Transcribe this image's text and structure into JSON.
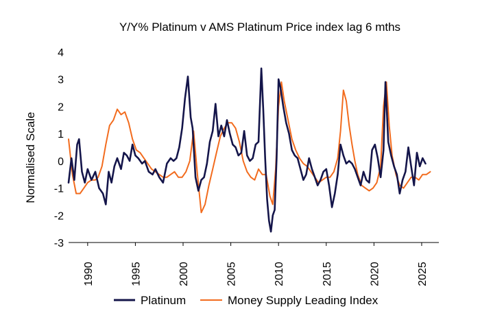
{
  "chart_data": {
    "type": "line",
    "title": "Y/Y% Platinum v AMS Platinum Price index lag 6 mths",
    "xlabel": "",
    "ylabel": "Normalised Scale",
    "xlim": [
      1988.0,
      2026.8
    ],
    "ylim": [
      -3,
      4
    ],
    "x_ticks": [
      1990,
      1995,
      2000,
      2005,
      2010,
      2015,
      2020,
      2025
    ],
    "y_ticks": [
      -3,
      -2,
      -1,
      0,
      1,
      2,
      3,
      4
    ],
    "x_tick_labels": [
      "1990",
      "1995",
      "2000",
      "2005",
      "2010",
      "2015",
      "2020",
      "2025"
    ],
    "y_tick_labels": [
      "-3",
      "-2",
      "-1",
      "0",
      "1",
      "2",
      "3",
      "4"
    ],
    "grid": false,
    "legend_position": "bottom",
    "series": [
      {
        "name": "Platinum",
        "color": "#14154a",
        "x": [
          1988.0,
          1988.3,
          1988.6,
          1988.9,
          1989.1,
          1989.4,
          1989.7,
          1990.0,
          1990.4,
          1990.8,
          1991.2,
          1991.6,
          1991.9,
          1992.2,
          1992.5,
          1992.8,
          1993.1,
          1993.5,
          1993.8,
          1994.1,
          1994.4,
          1994.7,
          1995.0,
          1995.3,
          1995.7,
          1996.0,
          1996.4,
          1996.8,
          1997.1,
          1997.5,
          1997.9,
          1998.3,
          1998.7,
          1999.0,
          1999.3,
          1999.6,
          1999.9,
          2000.2,
          2000.5,
          2000.8,
          2001.0,
          2001.3,
          2001.6,
          2001.9,
          2002.2,
          2002.5,
          2002.8,
          2003.1,
          2003.4,
          2003.7,
          2004.0,
          2004.3,
          2004.6,
          2004.9,
          2005.2,
          2005.5,
          2005.8,
          2006.1,
          2006.4,
          2006.7,
          2007.0,
          2007.3,
          2007.6,
          2007.9,
          2008.2,
          2008.4,
          2008.6,
          2008.8,
          2009.0,
          2009.2,
          2009.4,
          2009.6,
          2009.8,
          2010.0,
          2010.2,
          2010.5,
          2010.8,
          2011.1,
          2011.4,
          2011.7,
          2012.0,
          2012.3,
          2012.6,
          2012.9,
          2013.2,
          2013.5,
          2013.8,
          2014.1,
          2014.4,
          2014.7,
          2015.0,
          2015.3,
          2015.6,
          2015.9,
          2016.2,
          2016.5,
          2016.8,
          2017.1,
          2017.4,
          2017.7,
          2018.0,
          2018.3,
          2018.6,
          2018.9,
          2019.2,
          2019.5,
          2019.8,
          2020.1,
          2020.4,
          2020.7,
          2021.0,
          2021.2,
          2021.5,
          2021.8,
          2022.1,
          2022.4,
          2022.7,
          2023.0,
          2023.3,
          2023.6,
          2023.9,
          2024.2,
          2024.5,
          2024.8,
          2025.1,
          2025.4
        ],
        "values": [
          -0.8,
          0.1,
          -0.7,
          0.6,
          0.8,
          -0.4,
          -0.8,
          -0.3,
          -0.7,
          -0.4,
          -1.0,
          -1.2,
          -1.6,
          -0.4,
          -0.8,
          -0.2,
          0.1,
          -0.3,
          0.3,
          0.2,
          0.0,
          0.6,
          0.2,
          0.1,
          -0.1,
          0.0,
          -0.4,
          -0.5,
          -0.3,
          -0.6,
          -0.8,
          -0.1,
          0.1,
          0.0,
          0.1,
          0.5,
          1.2,
          2.3,
          3.1,
          1.6,
          1.2,
          -0.6,
          -1.1,
          -0.7,
          -0.6,
          -0.1,
          0.7,
          1.1,
          2.1,
          0.9,
          1.3,
          0.9,
          1.5,
          1.0,
          0.6,
          0.5,
          0.2,
          0.3,
          1.1,
          0.2,
          0.0,
          0.1,
          0.6,
          0.7,
          3.4,
          1.9,
          0.1,
          -1.4,
          -2.2,
          -2.6,
          -2.0,
          -1.8,
          0.1,
          3.0,
          2.7,
          2.0,
          1.4,
          1.0,
          0.4,
          0.2,
          0.1,
          -0.3,
          -0.7,
          -0.5,
          0.1,
          -0.3,
          -0.6,
          -0.9,
          -0.7,
          -0.4,
          -0.3,
          -0.9,
          -1.7,
          -1.2,
          -0.5,
          0.6,
          0.2,
          -0.1,
          0.0,
          -0.1,
          -0.3,
          -0.6,
          -0.9,
          -0.4,
          -0.7,
          -0.8,
          0.4,
          0.6,
          0.1,
          -0.6,
          0.4,
          2.9,
          0.7,
          0.2,
          -0.2,
          -0.5,
          -1.2,
          -0.7,
          -0.4,
          0.5,
          -0.2,
          -0.9,
          0.3,
          -0.2,
          0.1,
          -0.1
        ]
      },
      {
        "name": "Money Supply Leading Index",
        "color": "#f26b1d",
        "x": [
          1988.0,
          1988.4,
          1988.8,
          1989.2,
          1989.6,
          1990.0,
          1990.4,
          1990.8,
          1991.1,
          1991.5,
          1991.9,
          1992.3,
          1992.7,
          1993.1,
          1993.5,
          1993.9,
          1994.3,
          1994.7,
          1995.1,
          1995.5,
          1995.9,
          1996.3,
          1996.7,
          1997.1,
          1997.5,
          1997.9,
          1998.3,
          1998.7,
          1999.1,
          1999.5,
          1999.9,
          2000.3,
          2000.7,
          2001.1,
          2001.5,
          2001.9,
          2002.3,
          2002.7,
          2003.1,
          2003.5,
          2003.9,
          2004.3,
          2004.7,
          2005.1,
          2005.5,
          2005.9,
          2006.3,
          2006.7,
          2007.1,
          2007.5,
          2007.9,
          2008.3,
          2008.7,
          2009.1,
          2009.4,
          2009.7,
          2010.0,
          2010.3,
          2010.6,
          2011.0,
          2011.4,
          2011.8,
          2012.2,
          2012.6,
          2013.0,
          2013.4,
          2013.8,
          2014.2,
          2014.6,
          2015.0,
          2015.4,
          2015.8,
          2016.2,
          2016.5,
          2016.8,
          2017.1,
          2017.4,
          2017.7,
          2018.0,
          2018.3,
          2018.7,
          2019.1,
          2019.5,
          2019.9,
          2020.3,
          2020.7,
          2021.0,
          2021.3,
          2021.6,
          2021.9,
          2022.3,
          2022.7,
          2023.1,
          2023.5,
          2023.9,
          2024.3,
          2024.7,
          2025.1,
          2025.5,
          2025.9
        ],
        "values": [
          0.8,
          -0.5,
          -1.2,
          -1.2,
          -1.0,
          -0.8,
          -0.7,
          -0.7,
          -0.6,
          -0.2,
          0.6,
          1.3,
          1.5,
          1.9,
          1.7,
          1.8,
          1.4,
          0.8,
          0.4,
          0.3,
          0.1,
          -0.1,
          -0.3,
          -0.4,
          -0.5,
          -0.6,
          -0.6,
          -0.5,
          -0.4,
          -0.6,
          -0.6,
          -0.4,
          0.0,
          1.1,
          -0.5,
          -1.9,
          -1.6,
          -0.9,
          -0.3,
          0.3,
          0.9,
          1.2,
          1.4,
          1.4,
          1.2,
          0.7,
          0.0,
          -0.4,
          -0.6,
          -0.7,
          -0.3,
          -0.5,
          -0.5,
          -1.3,
          -1.6,
          -0.3,
          2.0,
          2.9,
          2.2,
          1.5,
          0.8,
          0.4,
          0.1,
          -0.1,
          -0.2,
          -0.4,
          -0.6,
          -0.8,
          -0.7,
          -0.6,
          -0.6,
          -0.4,
          0.1,
          1.1,
          2.6,
          2.2,
          1.3,
          0.6,
          0.0,
          -0.5,
          -0.9,
          -1.0,
          -1.1,
          -1.0,
          -0.8,
          -0.2,
          2.0,
          2.9,
          1.3,
          0.2,
          -0.5,
          -0.9,
          -1.0,
          -0.8,
          -0.6,
          -0.6,
          -0.7,
          -0.5,
          -0.5,
          -0.4
        ]
      }
    ]
  }
}
